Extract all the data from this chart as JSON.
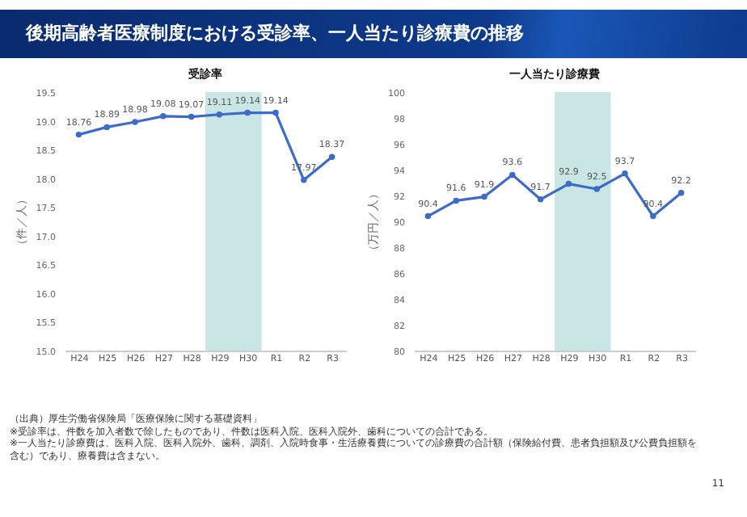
{
  "chart_data": [
    {
      "type": "line",
      "title": "受診率",
      "ylabel": "（件／人）",
      "categories": [
        "H24",
        "H25",
        "H26",
        "H27",
        "H28",
        "H29",
        "H30",
        "R1",
        "R2",
        "R3"
      ],
      "series": [
        {
          "color": "#3c6bc9",
          "values": [
            18.76,
            18.89,
            18.98,
            19.08,
            19.07,
            19.11,
            19.14,
            19.14,
            17.97,
            18.37
          ]
        }
      ],
      "ylim": [
        15.0,
        19.5
      ],
      "yticks": [
        {
          "value": 15,
          "label": "15.0"
        },
        15.5,
        {
          "value": 16,
          "label": "16.0"
        },
        16.5,
        {
          "value": 17,
          "label": "17.0"
        },
        17.5,
        {
          "value": 18,
          "label": "18.0"
        },
        18.5,
        {
          "value": 19,
          "label": "19.0"
        },
        19.5
      ],
      "bands": [
        {
          "axis": "x",
          "from": "H29",
          "to": "H30",
          "color": "#c9e6e4"
        }
      ],
      "data_labels": true,
      "marker": "circle",
      "grid": false,
      "annotations": [
        "後期高齢者医療制度における受診率、一人当たり診療費の推移",
        "（出典）厚生労働省保険局「医療保険に関する基礎資料」",
        "※受診率は、件数を加入者数で除したものであり、件数は医科入院、医科入院外、歯科についての合計である。",
        "※一人当たり診療費は、医科入院、医科入院外、歯科、調剤、入院時食事・生活療養費についての診療費の合計額（保険給付費、患者負担額及び公費負担額を含む）であり、療養費は含まない。",
        "11"
      ]
    },
    {
      "type": "line",
      "title": "一人当たり診療費",
      "ylabel": "（万円／人）",
      "categories": [
        "H24",
        "H25",
        "H26",
        "H27",
        "H28",
        "H29",
        "H30",
        "R1",
        "R2",
        "R3"
      ],
      "series": [
        {
          "color": "#3c6bc9",
          "values": [
            90.4,
            91.6,
            91.9,
            93.6,
            91.7,
            92.9,
            92.5,
            93.7,
            90.4,
            92.2
          ]
        }
      ],
      "ylim": [
        80,
        100
      ],
      "yticks": [
        80,
        82,
        84,
        86,
        88,
        90,
        92,
        94,
        96,
        98,
        100
      ],
      "bands": [
        {
          "axis": "x",
          "from": "H29",
          "to": "H30",
          "color": "#c9e6e4"
        }
      ],
      "data_labels": true,
      "marker": "circle",
      "grid": false
    }
  ]
}
